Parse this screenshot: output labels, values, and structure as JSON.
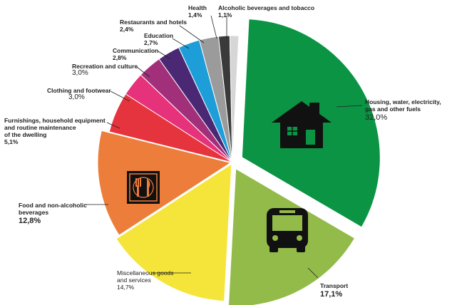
{
  "chart_data": {
    "type": "pie",
    "title": "",
    "slices": [
      {
        "label": "Housing, water, electricity, gas and other fuels",
        "value": 32.0,
        "display": "32,0%",
        "color": "#0a9444",
        "icon": "house-icon"
      },
      {
        "label": "Transport",
        "value": 17.1,
        "display": "17,1%",
        "color": "#93bb49",
        "icon": "bus-icon"
      },
      {
        "label": "Miscellaneous goods and services",
        "value": 14.7,
        "display": "14,7%",
        "color": "#f5e53a",
        "icon": ""
      },
      {
        "label": "Food and non-alcoholic beverages",
        "value": 12.8,
        "display": "12,8%",
        "color": "#ec7d3a",
        "icon": "fork-knife-icon"
      },
      {
        "label": "Furnishings, household equipment and routine maintenance of the dwelling",
        "value": 5.1,
        "display": "5,1%",
        "color": "#e6343e",
        "icon": ""
      },
      {
        "label": "Clothing and footwear",
        "value": 3.0,
        "display": "3,0%",
        "color": "#e6317b",
        "icon": ""
      },
      {
        "label": "Recreation and culture",
        "value": 3.0,
        "display": "3,0%",
        "color": "#a22f7a",
        "icon": ""
      },
      {
        "label": "Communication",
        "value": 2.8,
        "display": "2,8%",
        "color": "#4b2873",
        "icon": ""
      },
      {
        "label": "Education",
        "value": 2.7,
        "display": "2,7%",
        "color": "#1d9ed8",
        "icon": ""
      },
      {
        "label": "Restaurants and hotels",
        "value": 2.4,
        "display": "2,4%",
        "color": "#9b9b9b",
        "icon": ""
      },
      {
        "label": "Health",
        "value": 1.4,
        "display": "1,4%",
        "color": "#3a3a3a",
        "icon": ""
      },
      {
        "label": "Alcoholic beverages and tobacco",
        "value": 1.1,
        "display": "1,1%",
        "color": "#d6d6d6",
        "icon": ""
      }
    ]
  },
  "labels": {
    "housing": {
      "l1": "Housing, water, electricity,",
      "l2": "gas and other fuels",
      "pct": "32,0%"
    },
    "transport": {
      "name": "Transport",
      "pct": "17,1%"
    },
    "misc": {
      "l1": "Miscellaneous goods",
      "l2": "and services",
      "pct": "14,7%"
    },
    "food": {
      "l1": "Food and non-alcoholic",
      "l2": "beverages",
      "pct": "12,8%"
    },
    "furnishings": {
      "l1": "Furnishings, household equipment",
      "l2": "and routine maintenance",
      "l3": "of the dwelling",
      "pct": "5,1%"
    },
    "clothing": {
      "name": "Clothing and footwear",
      "pct": "3,0%"
    },
    "recreation": {
      "name": "Recreation and culture",
      "pct": "3,0%"
    },
    "communication": {
      "name": "Communication",
      "pct": "2,8%"
    },
    "education": {
      "name": "Education",
      "pct": "2,7%"
    },
    "restaurants": {
      "name": "Restaurants and hotels",
      "pct": "2,4%"
    },
    "health": {
      "name": "Health",
      "pct": "1,4%"
    },
    "alcohol": {
      "name": "Alcoholic beverages and tobacco",
      "pct": "1,1%"
    }
  }
}
